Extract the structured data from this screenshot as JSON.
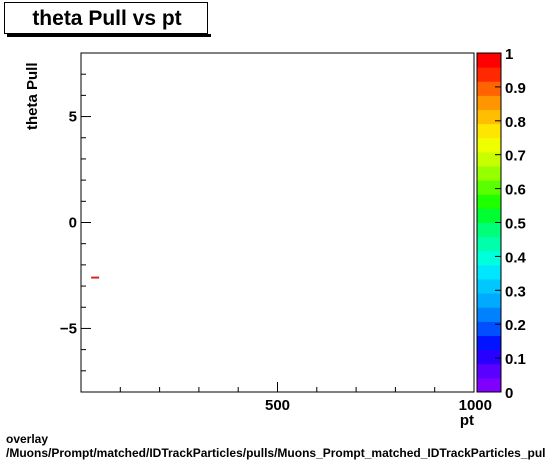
{
  "chart_data": {
    "type": "scatter",
    "title": "theta Pull vs pt",
    "xlabel": "pt",
    "ylabel": "theta Pull",
    "xlim": [
      0,
      1000
    ],
    "ylim": [
      -8,
      8
    ],
    "x_ticks": [
      500,
      1000
    ],
    "x_tick_labels": [
      "500",
      "1000"
    ],
    "y_ticks": [
      -5,
      0,
      5
    ],
    "y_tick_labels": [
      "−5",
      "0",
      "5"
    ],
    "points": [
      {
        "x": 36,
        "y": -2.6
      }
    ],
    "colorbar": {
      "range": [
        0,
        1
      ],
      "tick_labels": [
        "0",
        "0.1",
        "0.2",
        "0.3",
        "0.4",
        "0.5",
        "0.6",
        "0.7",
        "0.8",
        "0.9",
        "1"
      ],
      "colors": [
        "#7f00ff",
        "#5a00ff",
        "#2800ff",
        "#0014ff",
        "#0050ff",
        "#0082ff",
        "#00aaff",
        "#00c8ff",
        "#00e6ff",
        "#00ffdc",
        "#00ffaa",
        "#00ff78",
        "#00ff32",
        "#1eff00",
        "#5aff00",
        "#96ff00",
        "#c8ff00",
        "#f0ff00",
        "#ffe600",
        "#ffbe00",
        "#ff9600",
        "#ff6400",
        "#ff2800",
        "#ff0000"
      ]
    },
    "marker_color": "#d62728"
  },
  "footer": {
    "line1": "overlay",
    "line2": "/Muons/Prompt/matched/IDTrackParticles/pulls/Muons_Prompt_matched_IDTrackParticles_pulls_thetapull_vs_pt"
  }
}
